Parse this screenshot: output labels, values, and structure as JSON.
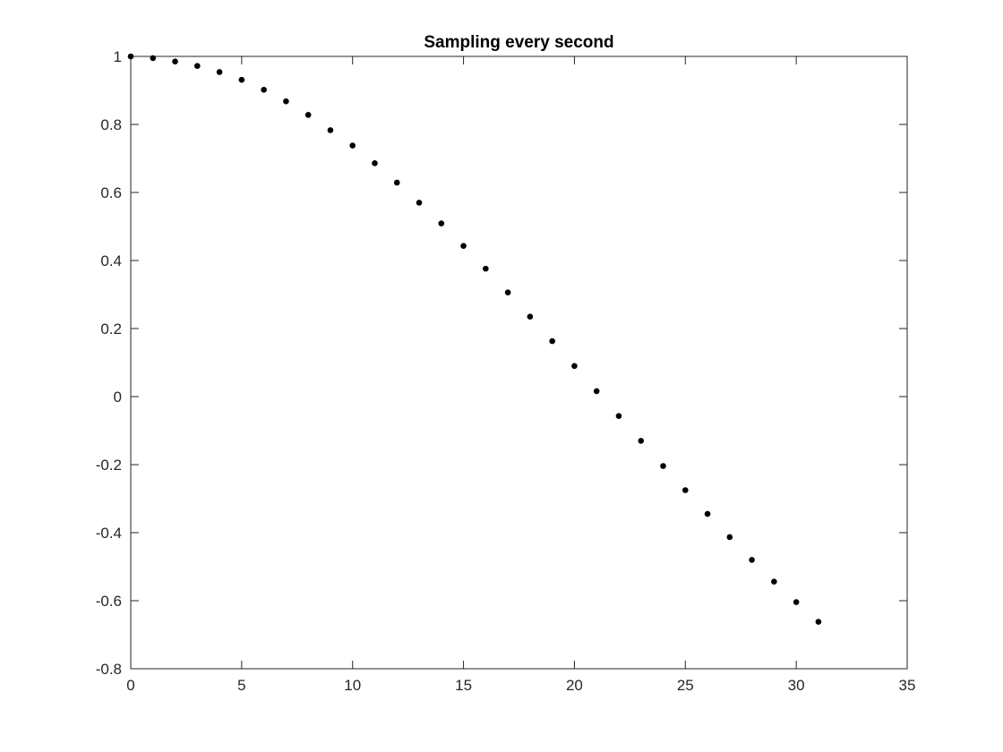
{
  "chart_data": {
    "type": "scatter",
    "title": "Sampling every second",
    "xlabel": "",
    "ylabel": "",
    "xlim": [
      0,
      35
    ],
    "ylim": [
      -0.8,
      1
    ],
    "xticks": [
      0,
      5,
      10,
      15,
      20,
      25,
      30,
      35
    ],
    "xtick_labels": [
      "0",
      "5",
      "10",
      "15",
      "20",
      "25",
      "30",
      "35"
    ],
    "yticks": [
      -0.8,
      -0.6,
      -0.4,
      -0.2,
      0,
      0.2,
      0.4,
      0.6,
      0.8,
      1
    ],
    "ytick_labels": [
      "-0.8",
      "-0.6",
      "-0.4",
      "-0.2",
      "0",
      "0.2",
      "0.4",
      "0.6",
      "0.8",
      "1"
    ],
    "grid": false,
    "legend": false,
    "marker_color": "#000000",
    "series": [
      {
        "marker": "filled-dot",
        "x": [
          0,
          1,
          2,
          3,
          4,
          5,
          6,
          7,
          8,
          9,
          10,
          11,
          12,
          13,
          14,
          15,
          16,
          17,
          18,
          19,
          20,
          21,
          22,
          23,
          24,
          25,
          26,
          27,
          28,
          29,
          30,
          31
        ],
        "y": [
          1.0,
          0.995,
          0.985,
          0.972,
          0.954,
          0.931,
          0.902,
          0.868,
          0.828,
          0.783,
          0.738,
          0.686,
          0.629,
          0.57,
          0.509,
          0.443,
          0.376,
          0.306,
          0.235,
          0.163,
          0.09,
          0.016,
          -0.057,
          -0.13,
          -0.204,
          -0.275,
          -0.345,
          -0.413,
          -0.48,
          -0.544,
          -0.604,
          -0.662
        ]
      }
    ]
  }
}
